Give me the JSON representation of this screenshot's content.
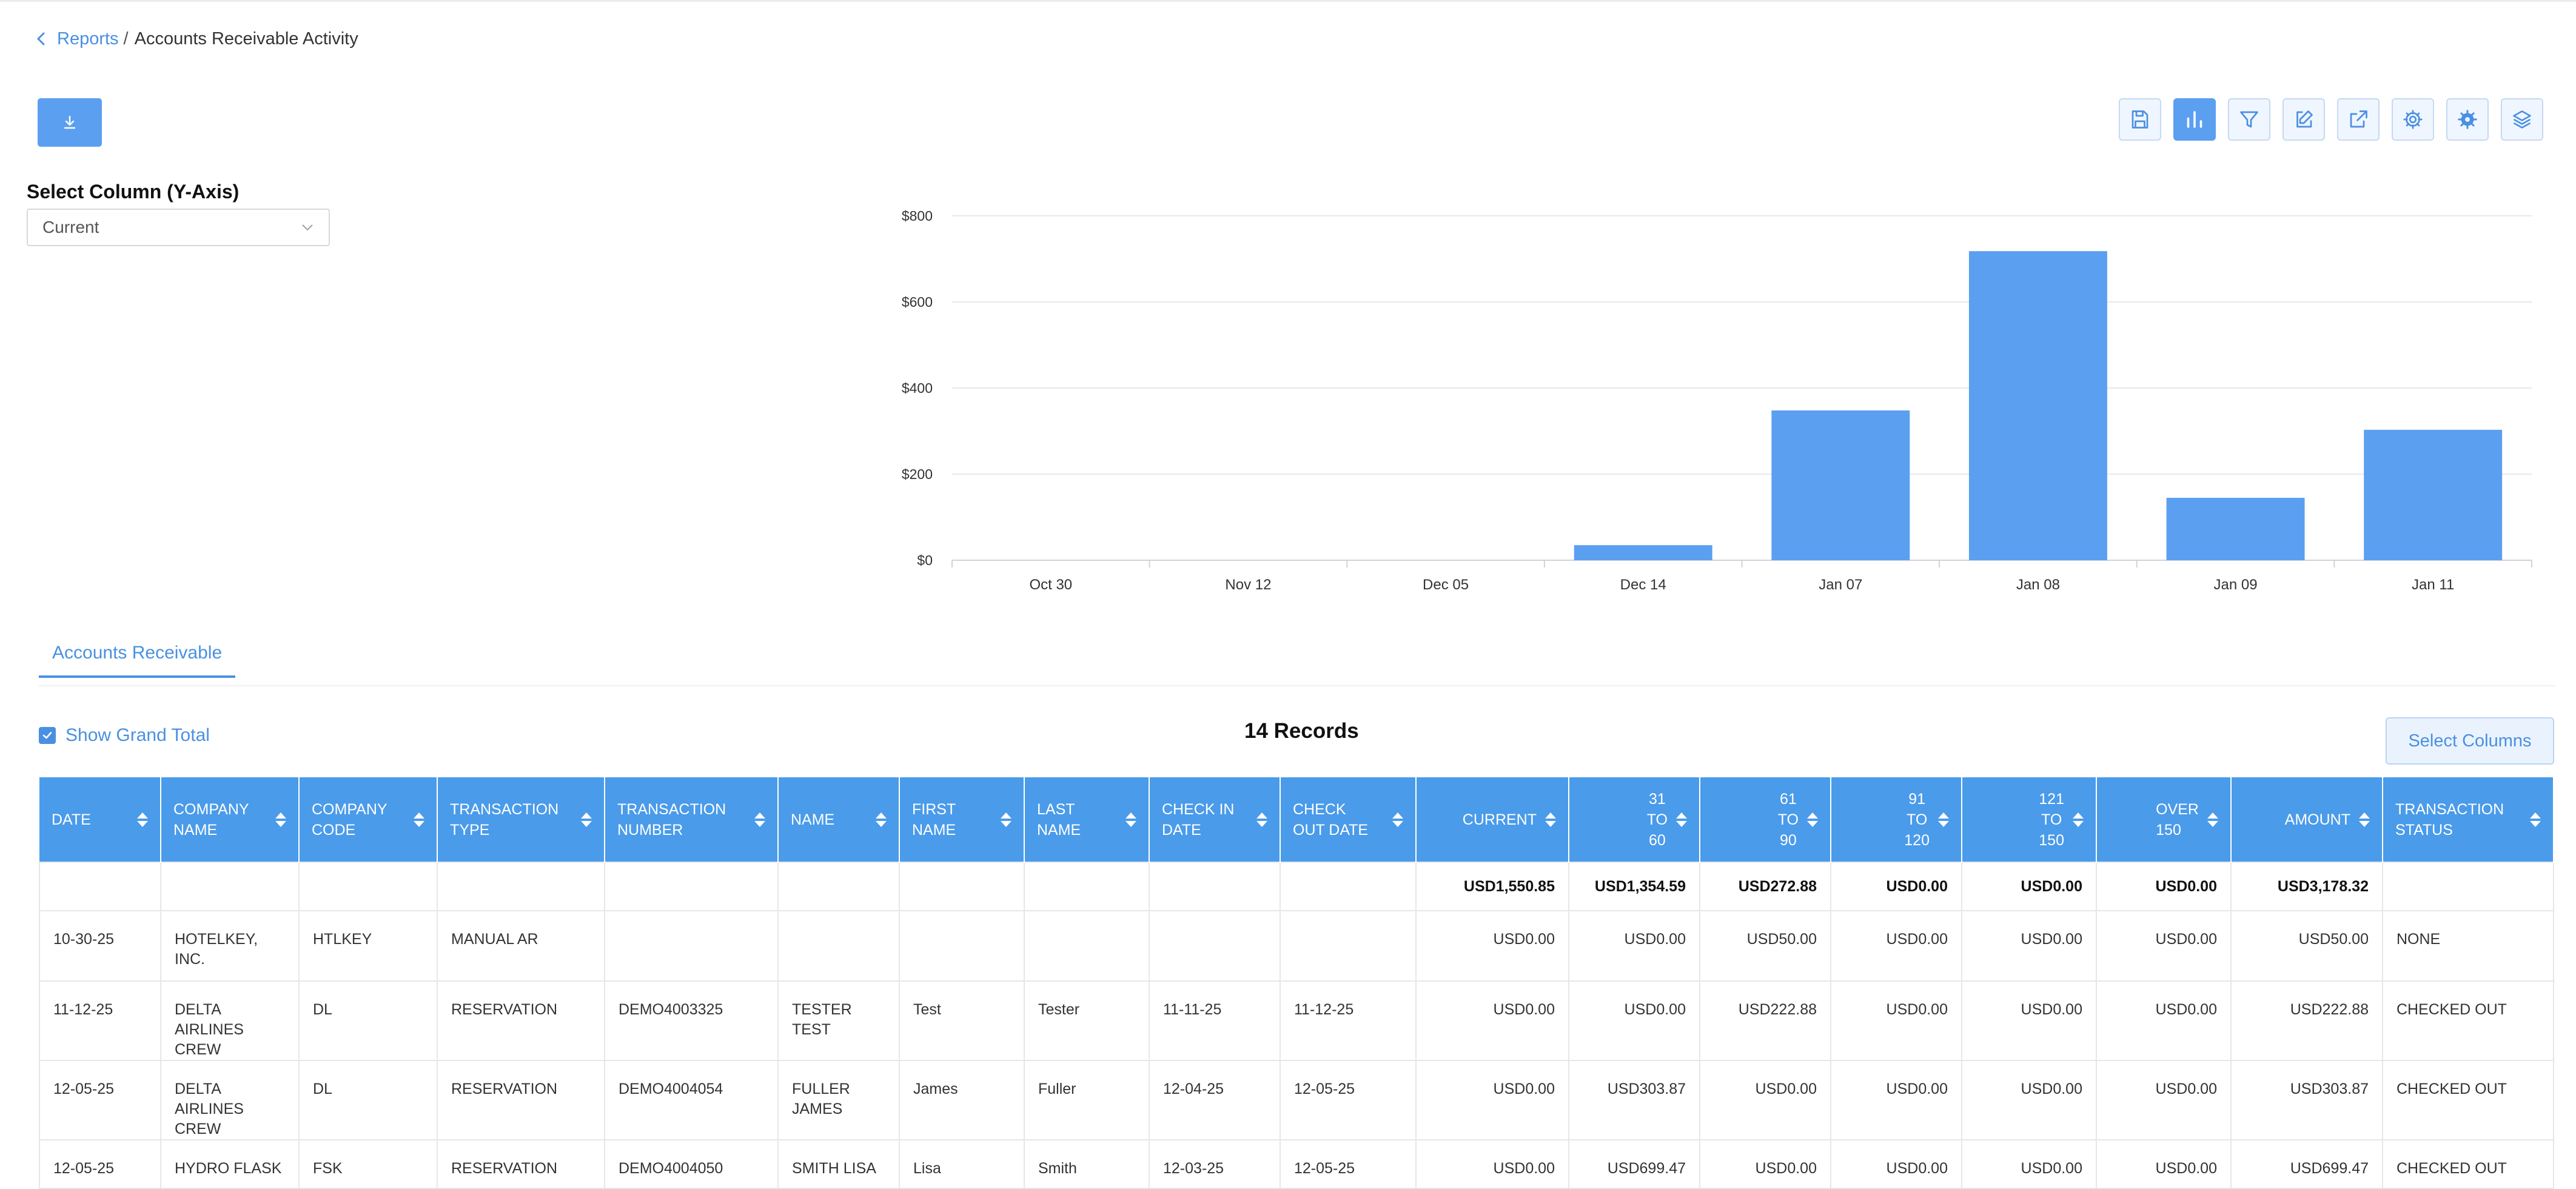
{
  "breadcrumb": {
    "parent": "Reports",
    "separator": "/",
    "current": "Accounts Receivable Activity"
  },
  "select_column": {
    "label": "Select Column (Y-Axis)",
    "value": "Current"
  },
  "chart_data": {
    "type": "bar",
    "categories": [
      "Oct 30",
      "Nov 12",
      "Dec 05",
      "Dec 14",
      "Jan 07",
      "Jan 08",
      "Jan 09",
      "Jan 11"
    ],
    "values": [
      0,
      0,
      0,
      35,
      348,
      718,
      145,
      303
    ],
    "ylim": [
      0,
      800
    ],
    "yticks": [
      "$0",
      "$200",
      "$400",
      "$600",
      "$800"
    ],
    "ytick_values": [
      0,
      200,
      400,
      600,
      800
    ],
    "bar_color": "#5b9ff1",
    "grid": true
  },
  "tabs": [
    {
      "label": "Accounts Receivable"
    }
  ],
  "grand_total": {
    "label": "Show Grand Total",
    "checked": true
  },
  "records_label": "14 Records",
  "select_columns_label": "Select Columns",
  "table": {
    "headers": [
      [
        "DATE"
      ],
      [
        "COMPANY",
        "NAME"
      ],
      [
        "COMPANY",
        "CODE"
      ],
      [
        "TRANSACTION",
        "TYPE"
      ],
      [
        "TRANSACTION",
        "NUMBER"
      ],
      [
        "NAME"
      ],
      [
        "FIRST",
        "NAME"
      ],
      [
        "LAST",
        "NAME"
      ],
      [
        "CHECK IN",
        "DATE"
      ],
      [
        "CHECK",
        "OUT DATE"
      ],
      [
        "CURRENT"
      ],
      [
        "31",
        "TO",
        "60"
      ],
      [
        "61",
        "TO",
        "90"
      ],
      [
        "91",
        "TO",
        "120"
      ],
      [
        "121",
        "TO",
        "150"
      ],
      [
        "OVER",
        "150"
      ],
      [
        "AMOUNT"
      ],
      [
        "TRANSACTION",
        "STATUS"
      ]
    ],
    "totals": [
      "",
      "",
      "",
      "",
      "",
      "",
      "",
      "",
      "",
      "",
      "USD1,550.85",
      "USD1,354.59",
      "USD272.88",
      "USD0.00",
      "USD0.00",
      "USD0.00",
      "USD3,178.32",
      ""
    ],
    "rows": [
      [
        "10-30-25",
        "HOTELKEY, INC.",
        "HTLKEY",
        "MANUAL AR",
        "",
        "",
        "",
        "",
        "",
        "",
        "USD0.00",
        "USD0.00",
        "USD50.00",
        "USD0.00",
        "USD0.00",
        "USD0.00",
        "USD50.00",
        "NONE"
      ],
      [
        "11-12-25",
        "DELTA AIRLINES CREW",
        "DL",
        "RESERVATION",
        "DEMO4003325",
        "TESTER TEST",
        "Test",
        "Tester",
        "11-11-25",
        "11-12-25",
        "USD0.00",
        "USD0.00",
        "USD222.88",
        "USD0.00",
        "USD0.00",
        "USD0.00",
        "USD222.88",
        "CHECKED OUT"
      ],
      [
        "12-05-25",
        "DELTA AIRLINES CREW",
        "DL",
        "RESERVATION",
        "DEMO4004054",
        "FULLER JAMES",
        "James",
        "Fuller",
        "12-04-25",
        "12-05-25",
        "USD0.00",
        "USD303.87",
        "USD0.00",
        "USD0.00",
        "USD0.00",
        "USD0.00",
        "USD303.87",
        "CHECKED OUT"
      ],
      [
        "12-05-25",
        "HYDRO FLASK",
        "FSK",
        "RESERVATION",
        "DEMO4004050",
        "SMITH LISA",
        "Lisa",
        "Smith",
        "12-03-25",
        "12-05-25",
        "USD0.00",
        "USD699.47",
        "USD0.00",
        "USD0.00",
        "USD0.00",
        "USD0.00",
        "USD699.47",
        "CHECKED OUT"
      ]
    ]
  },
  "toolbar": {
    "buttons": [
      {
        "name": "save-button",
        "icon": "save-icon",
        "active": false
      },
      {
        "name": "chart-button",
        "icon": "bar-chart-icon",
        "active": true
      },
      {
        "name": "filter-button",
        "icon": "filter-icon",
        "active": false
      },
      {
        "name": "edit-button",
        "icon": "edit-icon",
        "active": false
      },
      {
        "name": "export-button",
        "icon": "external-link-icon",
        "active": false
      },
      {
        "name": "settings-button",
        "icon": "gear-icon",
        "active": false
      },
      {
        "name": "advanced-settings-button",
        "icon": "gear-badge-icon",
        "active": false
      },
      {
        "name": "layers-button",
        "icon": "layers-icon",
        "active": false
      }
    ]
  },
  "colors": {
    "accent": "#4a90e2",
    "header_bg": "#4a9bea",
    "bar": "#5b9ff1"
  }
}
